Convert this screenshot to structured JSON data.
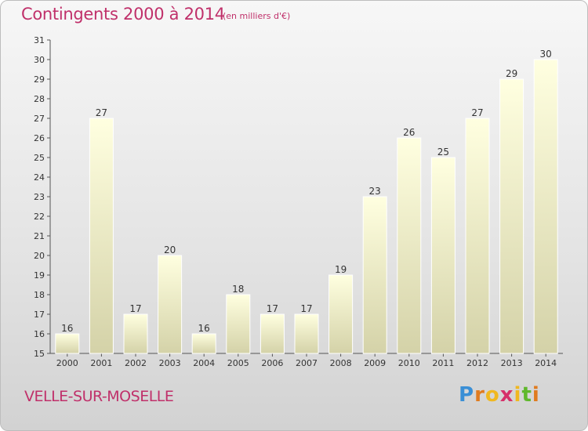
{
  "title": "Contingents 2000 à 2014",
  "subtitle": "(en milliers d'€)",
  "place": "VELLE-SUR-MOSELLE",
  "logo": {
    "p": "P",
    "r": "r",
    "o": "o",
    "x": "x",
    "i": "i",
    "t": "t",
    "i2": "i"
  },
  "colors": {
    "accent": "#c0306a",
    "bar_top": "#ffffe0",
    "bar_bottom": "#d4d2a8"
  },
  "chart_data": {
    "type": "bar",
    "categories": [
      "2000",
      "2001",
      "2002",
      "2003",
      "2004",
      "2005",
      "2006",
      "2007",
      "2008",
      "2009",
      "2010",
      "2011",
      "2012",
      "2013",
      "2014"
    ],
    "values": [
      16,
      27,
      17,
      20,
      16,
      18,
      17,
      17,
      19,
      23,
      26,
      25,
      27,
      29,
      30
    ],
    "title": "Contingents 2000 à 2014",
    "ylim": [
      15,
      31
    ],
    "yticks": [
      15,
      16,
      17,
      18,
      19,
      20,
      21,
      22,
      23,
      24,
      25,
      26,
      27,
      28,
      29,
      30,
      31
    ],
    "grid": false
  }
}
